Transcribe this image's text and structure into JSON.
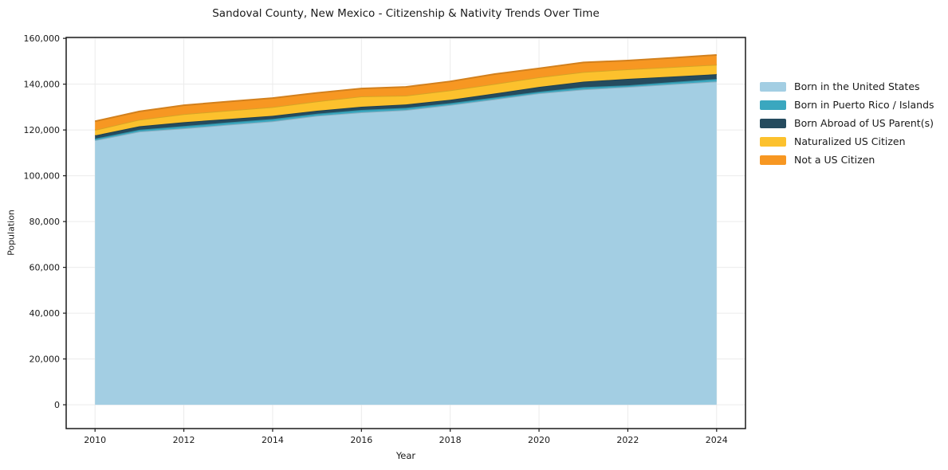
{
  "title": "Sandoval County, New Mexico - Citizenship & Nativity Trends Over Time",
  "chart_data": {
    "type": "area",
    "stacked": true,
    "title": "Sandoval County, New Mexico - Citizenship & Nativity Trends Over Time",
    "xlabel": "Year",
    "ylabel": "Population",
    "x": [
      2010,
      2011,
      2012,
      2013,
      2014,
      2015,
      2016,
      2017,
      2018,
      2019,
      2020,
      2021,
      2022,
      2023,
      2024
    ],
    "series": [
      {
        "name": "Born in the United States",
        "color": "#a3cee3",
        "values": [
          115500,
          119300,
          120700,
          122300,
          123800,
          126200,
          127700,
          128700,
          130900,
          133400,
          136000,
          137700,
          138800,
          140000,
          141200
        ]
      },
      {
        "name": "Born in Puerto Rico / Islands",
        "color": "#3aa7bf",
        "values": [
          700,
          800,
          1000,
          1000,
          1000,
          900,
          1050,
          950,
          800,
          800,
          700,
          1000,
          700,
          900,
          1050
        ]
      },
      {
        "name": "Born Abroad of US Parent(s)",
        "color": "#254b5e",
        "values": [
          1400,
          1500,
          1700,
          1500,
          1400,
          1300,
          1400,
          1500,
          1500,
          1700,
          2100,
          2400,
          2800,
          2400,
          2100
        ]
      },
      {
        "name": "Naturalized US Citizen",
        "color": "#fcc12d",
        "values": [
          2400,
          2900,
          3500,
          3700,
          3800,
          4100,
          4500,
          3850,
          4100,
          4200,
          4200,
          4200,
          4200,
          4200,
          4150
        ]
      },
      {
        "name": "Not a US Citizen",
        "color": "#f79722",
        "values": [
          3800,
          3600,
          3900,
          3900,
          3900,
          3700,
          3450,
          3800,
          3900,
          4300,
          3900,
          4200,
          3800,
          4000,
          4250
        ]
      }
    ],
    "x_ticks": [
      2010,
      2012,
      2014,
      2016,
      2018,
      2020,
      2022,
      2024
    ],
    "y_ticks": [
      0,
      20000,
      40000,
      60000,
      80000,
      100000,
      120000,
      140000,
      160000
    ],
    "xlim": [
      2009.35,
      2024.65
    ],
    "ylim": [
      -10400,
      160400
    ],
    "grid": true,
    "legend_position": "right",
    "grid_color": "#ebebeb",
    "spine_color": "#1a1a1a",
    "text_color": "#1a1a1a"
  }
}
